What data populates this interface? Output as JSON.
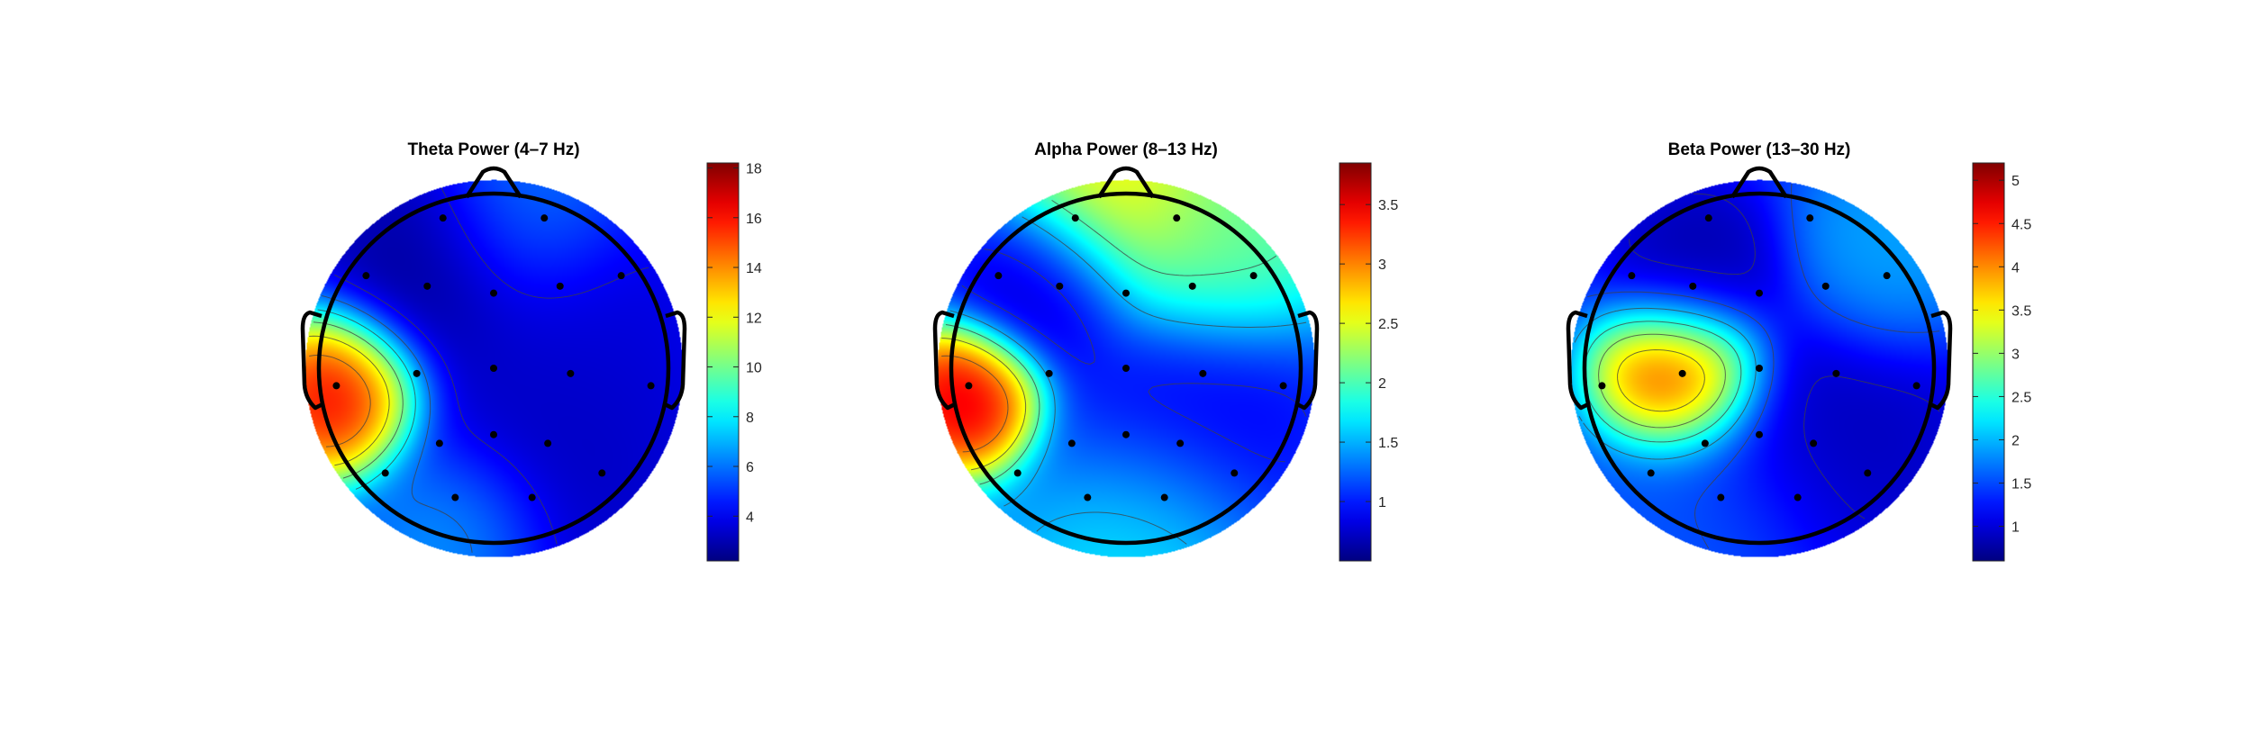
{
  "chart_data": [
    {
      "type": "heatmap",
      "subtype": "eeg-topographic-map",
      "title": "Theta Power (4–7 Hz)",
      "colormap": "jet",
      "clim": [
        2.2,
        18.2
      ],
      "colorbar_ticks": [
        4,
        6,
        8,
        10,
        12,
        14,
        16,
        18
      ],
      "colorbar_tick_labels": [
        "4",
        "6",
        "8",
        "10",
        "12",
        "14",
        "16",
        "18"
      ],
      "background_value": 5.0,
      "sources": [
        {
          "pos": [
            -0.86,
            -0.15
          ],
          "value": 18.2,
          "spread": 0.25
        },
        {
          "pos": [
            -0.35,
            0.55
          ],
          "value": 2.3,
          "spread": 0.35
        },
        {
          "pos": [
            0.3,
            -0.5
          ],
          "value": 3.0,
          "spread": 0.5
        },
        {
          "pos": [
            0.45,
            0.3
          ],
          "value": 3.5,
          "spread": 0.4
        },
        {
          "pos": [
            0.2,
            0.85
          ],
          "value": 6.5,
          "spread": 0.3
        },
        {
          "pos": [
            -0.2,
            -0.92
          ],
          "value": 7.5,
          "spread": 0.28
        }
      ],
      "contour_levels": [
        4,
        6,
        8,
        10,
        12,
        14,
        16
      ],
      "electrodes": [
        [
          -0.29,
          0.86
        ],
        [
          0.29,
          0.86
        ],
        [
          -0.73,
          0.53
        ],
        [
          -0.38,
          0.47
        ],
        [
          0,
          0.43
        ],
        [
          0.38,
          0.47
        ],
        [
          0.73,
          0.53
        ],
        [
          -0.9,
          -0.1
        ],
        [
          -0.44,
          -0.03
        ],
        [
          0,
          0
        ],
        [
          0.44,
          -0.03
        ],
        [
          0.9,
          -0.1
        ],
        [
          -0.31,
          -0.43
        ],
        [
          0,
          -0.38
        ],
        [
          0.31,
          -0.43
        ],
        [
          -0.62,
          -0.6
        ],
        [
          0.62,
          -0.6
        ],
        [
          -0.22,
          -0.74
        ],
        [
          0.22,
          -0.74
        ]
      ]
    },
    {
      "type": "heatmap",
      "subtype": "eeg-topographic-map",
      "title": "Alpha Power (8–13 Hz)",
      "colormap": "jet",
      "clim": [
        0.5,
        3.85
      ],
      "colorbar_ticks": [
        1,
        1.5,
        2,
        2.5,
        3,
        3.5
      ],
      "colorbar_tick_labels": [
        "1",
        "1.5",
        "2",
        "2.5",
        "3",
        "3.5"
      ],
      "background_value": 1.4,
      "sources": [
        {
          "pos": [
            -0.9,
            -0.15
          ],
          "value": 3.85,
          "spread": 0.22
        },
        {
          "pos": [
            -0.5,
            0.5
          ],
          "value": 0.6,
          "spread": 0.3
        },
        {
          "pos": [
            0.4,
            -0.4
          ],
          "value": 0.8,
          "spread": 0.45
        },
        {
          "pos": [
            -0.1,
            1.05
          ],
          "value": 2.8,
          "spread": 0.35
        },
        {
          "pos": [
            0.55,
            0.75
          ],
          "value": 2.2,
          "spread": 0.35
        },
        {
          "pos": [
            0.15,
            -0.95
          ],
          "value": 1.85,
          "spread": 0.35
        }
      ],
      "contour_levels": [
        1,
        1.5,
        2,
        2.5,
        3,
        3.5
      ],
      "electrodes": [
        [
          -0.29,
          0.86
        ],
        [
          0.29,
          0.86
        ],
        [
          -0.73,
          0.53
        ],
        [
          -0.38,
          0.47
        ],
        [
          0,
          0.43
        ],
        [
          0.38,
          0.47
        ],
        [
          0.73,
          0.53
        ],
        [
          -0.9,
          -0.1
        ],
        [
          -0.44,
          -0.03
        ],
        [
          0,
          0
        ],
        [
          0.44,
          -0.03
        ],
        [
          0.9,
          -0.1
        ],
        [
          -0.31,
          -0.43
        ],
        [
          0,
          -0.38
        ],
        [
          0.31,
          -0.43
        ],
        [
          -0.62,
          -0.6
        ],
        [
          0.62,
          -0.6
        ],
        [
          -0.22,
          -0.74
        ],
        [
          0.22,
          -0.74
        ]
      ]
    },
    {
      "type": "heatmap",
      "subtype": "eeg-topographic-map",
      "title": "Beta Power (13–30 Hz)",
      "colormap": "jet",
      "clim": [
        0.6,
        5.2
      ],
      "colorbar_ticks": [
        1,
        1.5,
        2,
        2.5,
        3,
        3.5,
        4,
        4.5,
        5
      ],
      "colorbar_tick_labels": [
        "1",
        "1.5",
        "2",
        "2.5",
        "3",
        "3.5",
        "4",
        "4.5",
        "5"
      ],
      "background_value": 1.4,
      "sources": [
        {
          "pos": [
            -0.44,
            -0.03
          ],
          "value": 5.2,
          "spread": 0.25
        },
        {
          "pos": [
            -0.35,
            0.5
          ],
          "value": 0.7,
          "spread": 0.28
        },
        {
          "pos": [
            0.4,
            -0.4
          ],
          "value": 0.8,
          "spread": 0.45
        },
        {
          "pos": [
            0.7,
            0.6
          ],
          "value": 2.0,
          "spread": 0.3
        },
        {
          "pos": [
            -0.3,
            -0.9
          ],
          "value": 1.6,
          "spread": 0.4
        }
      ],
      "contour_levels": [
        1,
        1.5,
        2,
        2.5,
        3,
        3.5,
        4,
        4.5,
        5
      ],
      "electrodes": [
        [
          -0.29,
          0.86
        ],
        [
          0.29,
          0.86
        ],
        [
          -0.73,
          0.53
        ],
        [
          -0.38,
          0.47
        ],
        [
          0,
          0.43
        ],
        [
          0.38,
          0.47
        ],
        [
          0.73,
          0.53
        ],
        [
          -0.9,
          -0.1
        ],
        [
          -0.44,
          -0.03
        ],
        [
          0,
          0
        ],
        [
          0.44,
          -0.03
        ],
        [
          0.9,
          -0.1
        ],
        [
          -0.31,
          -0.43
        ],
        [
          0,
          -0.38
        ],
        [
          0.31,
          -0.43
        ],
        [
          -0.62,
          -0.6
        ],
        [
          0.62,
          -0.6
        ],
        [
          -0.22,
          -0.74
        ],
        [
          0.22,
          -0.74
        ]
      ]
    }
  ]
}
